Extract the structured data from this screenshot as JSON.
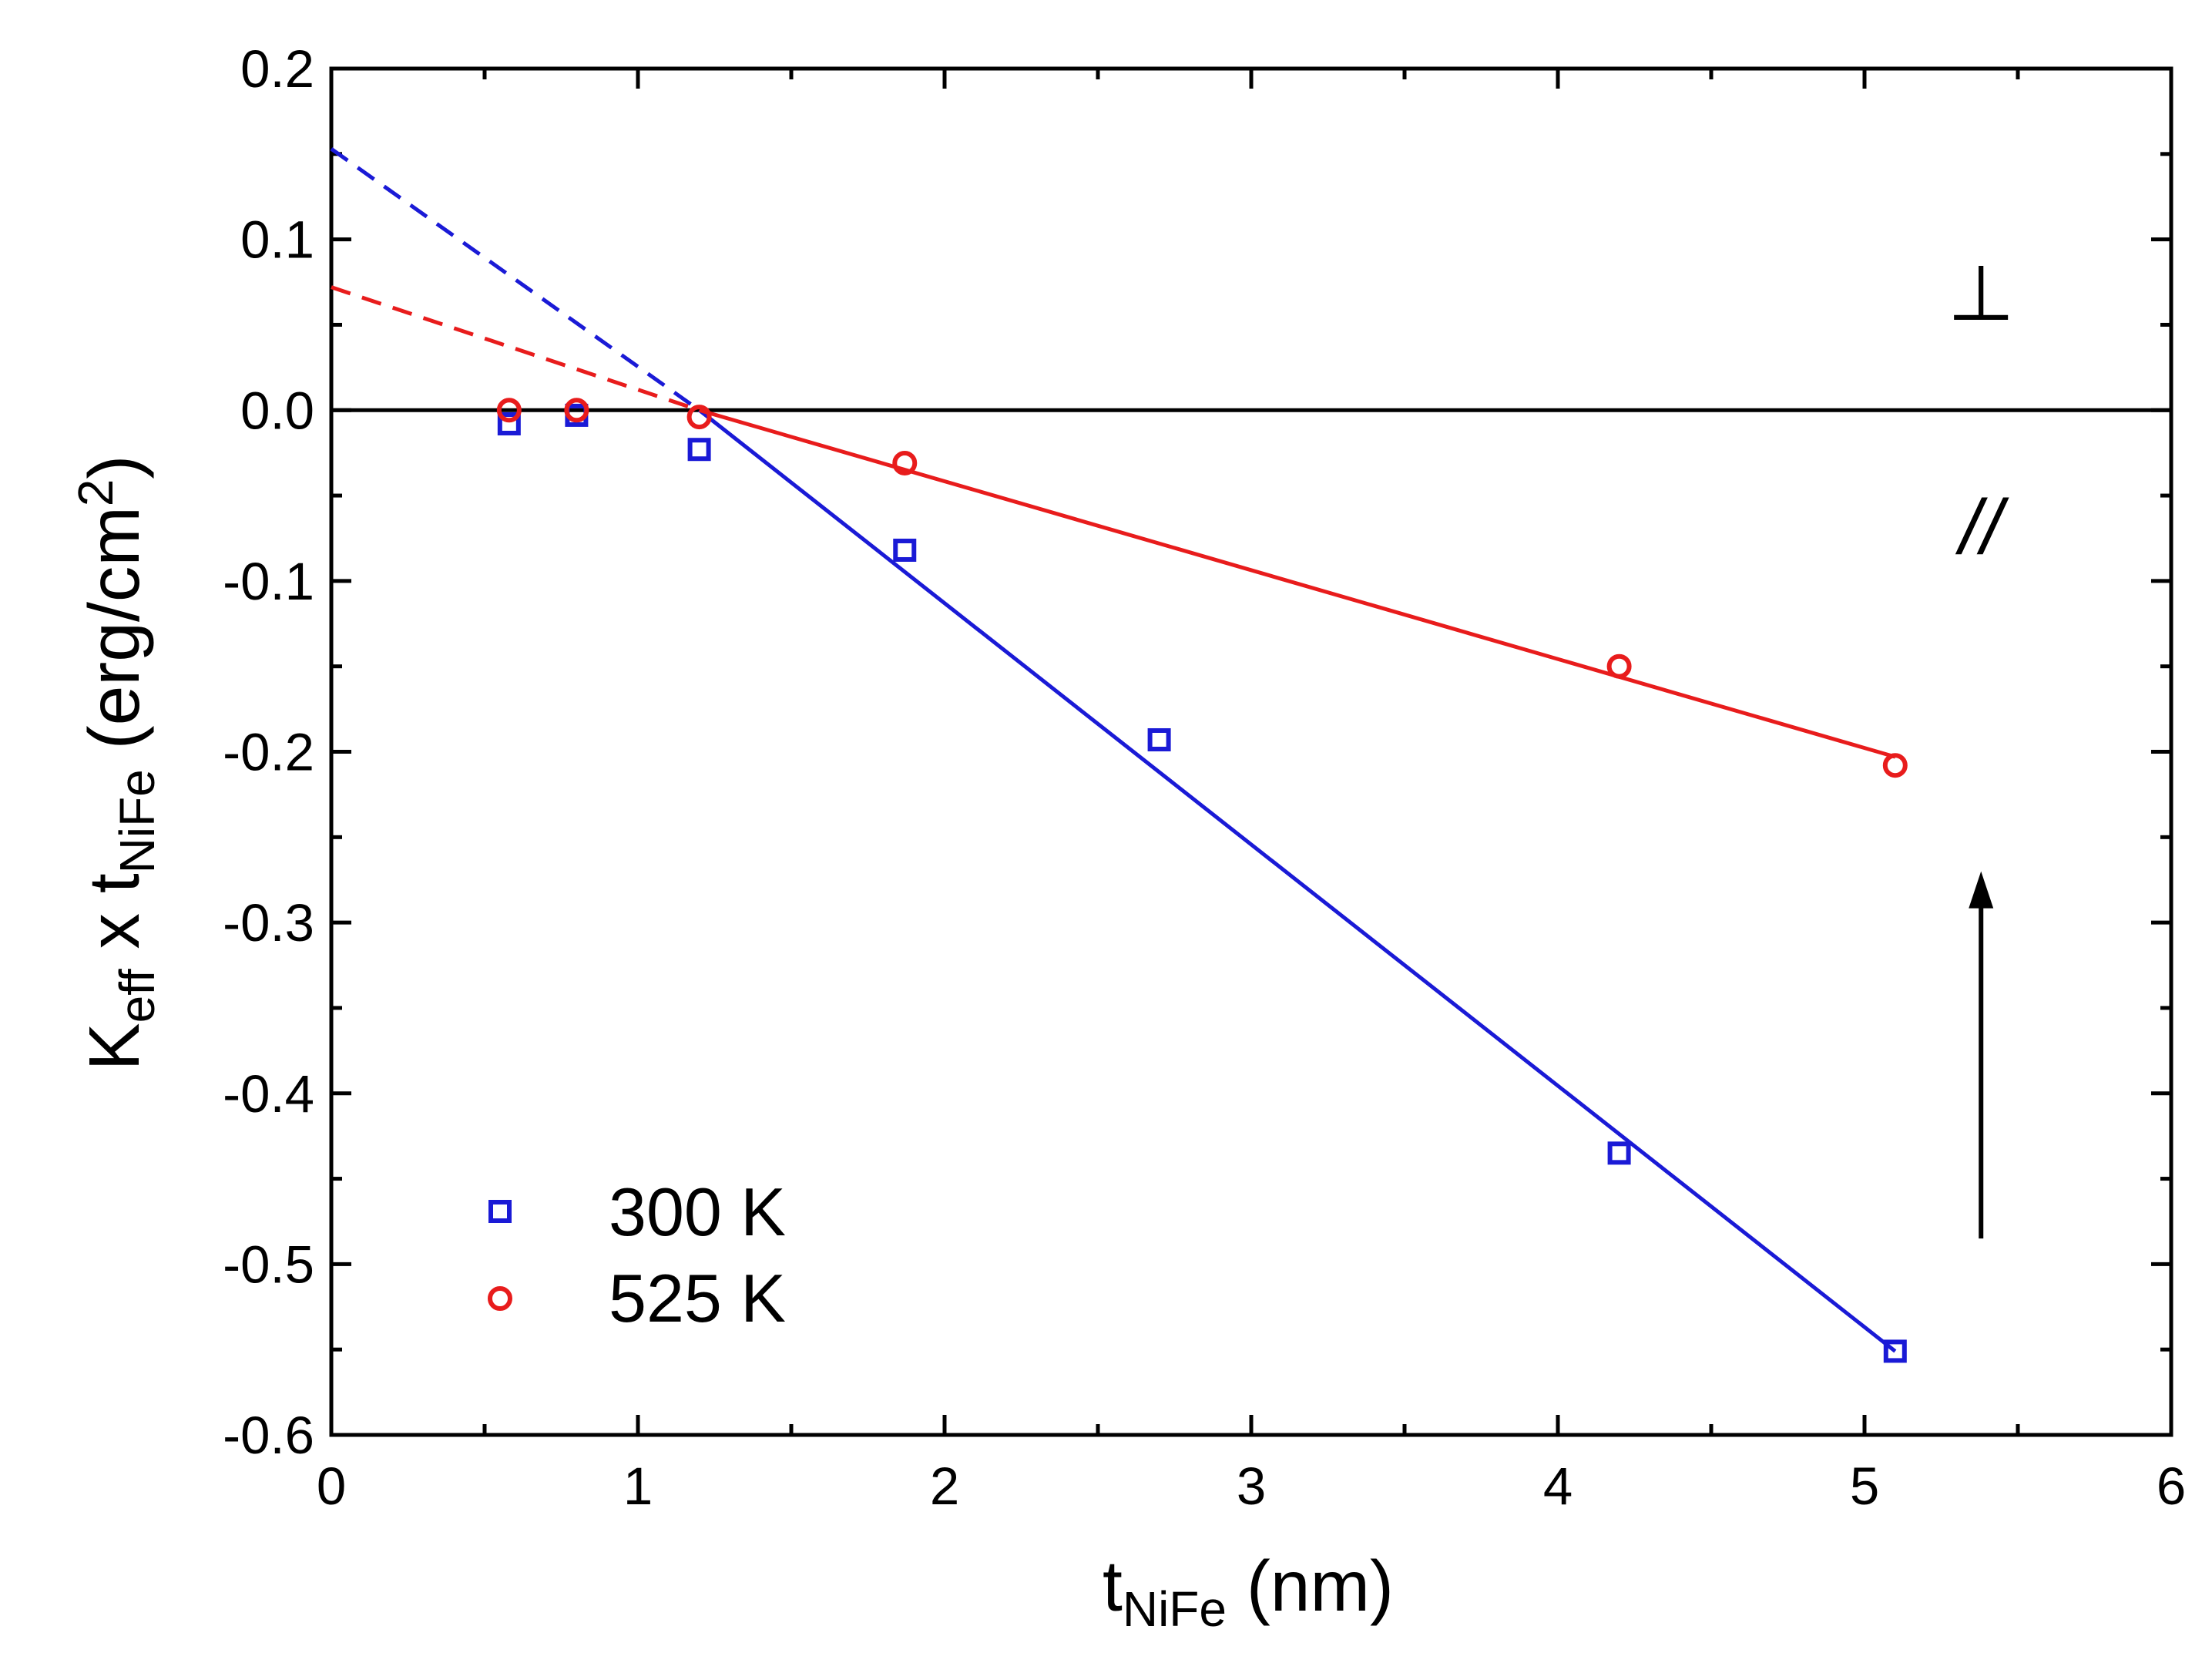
{
  "chart_data": {
    "type": "scatter",
    "title": "",
    "xlabel": {
      "main": "t",
      "sub": "NiFe",
      "unit": " (nm)"
    },
    "ylabel": {
      "main": "K",
      "sub1": "eff",
      "mid": " x t",
      "sub2": "NiFe",
      "unit": " (erg/cm",
      "sup": "2",
      "close": ")"
    },
    "xlim": [
      0,
      6
    ],
    "ylim": [
      -0.6,
      0.2
    ],
    "x_ticks": [
      0,
      1,
      2,
      3,
      4,
      5,
      6
    ],
    "x_tick_labels": [
      "0",
      "1",
      "2",
      "3",
      "4",
      "5",
      "6"
    ],
    "y_ticks": [
      0.2,
      0.1,
      0.0,
      -0.1,
      -0.2,
      -0.3,
      -0.4,
      -0.5,
      -0.6
    ],
    "y_tick_labels": [
      "0.2",
      "0.1",
      "0.0",
      "-0.1",
      "-0.2",
      "-0.3",
      "-0.4",
      "-0.5",
      "-0.6"
    ],
    "grid": false,
    "series": [
      {
        "name": "300 K",
        "marker": "square-open",
        "color": "#1a1ad6",
        "x": [
          0.58,
          0.8,
          1.2,
          1.87,
          2.7,
          4.2,
          5.1
        ],
        "y": [
          -0.008,
          -0.003,
          -0.023,
          -0.082,
          -0.193,
          -0.435,
          -0.551
        ],
        "fit": {
          "x": [
            1.2,
            5.1
          ],
          "y": [
            0.0,
            -0.551
          ]
        },
        "extrapolation": {
          "x": [
            0.0,
            1.2
          ],
          "y": [
            0.153,
            0.0
          ]
        }
      },
      {
        "name": "525 K",
        "marker": "circle-open",
        "color": "#e81c1c",
        "x": [
          0.58,
          0.8,
          1.2,
          1.87,
          4.2,
          5.1
        ],
        "y": [
          0.0,
          0.0,
          -0.004,
          -0.031,
          -0.15,
          -0.208
        ],
        "fit": {
          "x": [
            1.2,
            5.1
          ],
          "y": [
            0.0,
            -0.203
          ]
        },
        "extrapolation": {
          "x": [
            0.0,
            1.2
          ],
          "y": [
            0.072,
            0.0
          ]
        }
      }
    ],
    "reference_line": {
      "y": 0.0,
      "color": "#000000"
    },
    "annotations": {
      "perpendicular": "⊥",
      "parallel": "//",
      "arrow": {
        "x": 5.38,
        "y_from": -0.485,
        "y_to": -0.27,
        "direction": "up"
      }
    },
    "legend": {
      "placement": "bottom-left"
    }
  }
}
